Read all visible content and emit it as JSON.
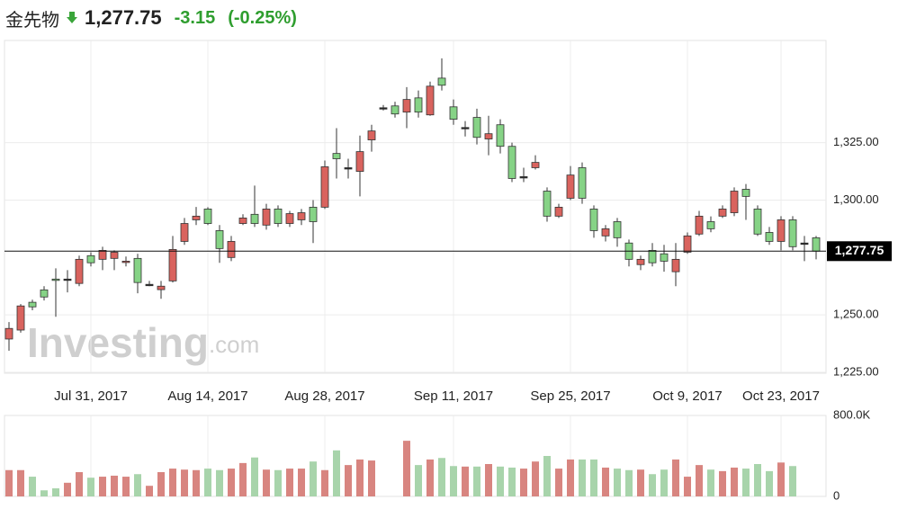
{
  "header": {
    "title": "金先物",
    "price": "1,277.75",
    "change": "-3.15",
    "change_pct": "(-0.25%)"
  },
  "chart_data": {
    "type": "candlestick",
    "categories": [
      null,
      null,
      null,
      null,
      null,
      null,
      null,
      "Jul 31, 2017",
      null,
      null,
      null,
      null,
      null,
      null,
      null,
      null,
      null,
      "Aug 14, 2017",
      null,
      null,
      null,
      null,
      null,
      null,
      null,
      null,
      null,
      "Aug 28, 2017",
      null,
      null,
      null,
      null,
      null,
      null,
      null,
      null,
      null,
      null,
      "Sep 11, 2017",
      null,
      null,
      null,
      null,
      null,
      null,
      null,
      null,
      null,
      "Sep 25, 2017",
      null,
      null,
      null,
      null,
      null,
      null,
      null,
      null,
      null,
      "Oct 9, 2017",
      null,
      null,
      null,
      null,
      null,
      null,
      null,
      "Oct 23, 2017",
      null,
      null,
      null
    ],
    "open": [
      1239.5,
      1243.4,
      1255.5,
      1260.9,
      1265.6,
      1265.6,
      1263.7,
      1275.8,
      1274.2,
      1274.6,
      1273.0,
      1274.6,
      1263.3,
      1261.0,
      1264.8,
      1282.0,
      1291.4,
      1296.1,
      1286.7,
      1275.0,
      1289.8,
      1293.8,
      1289.1,
      1296.1,
      1289.8,
      1291.4,
      1296.9,
      1296.9,
      1320.3,
      1314.1,
      1312.5,
      1326.2,
      1340.2,
      1341.0,
      1338.3,
      1344.5,
      1337.1,
      1353.1,
      1340.6,
      1331.6,
      1336.0,
      1326.6,
      1332.8,
      1323.4,
      1310.2,
      1314.1,
      1303.9,
      1293.0,
      1300.8,
      1314.1,
      1296.1,
      1284.4,
      1290.6,
      1281.3,
      1271.9,
      1278.1,
      1276.6,
      1268.8,
      1277.3,
      1285.2,
      1290.6,
      1293.0,
      1294.5,
      1304.7,
      1296.1,
      1285.9,
      1282.0,
      1291.4,
      1281.3,
      1283.6
    ],
    "high": [
      1246.9,
      1254.7,
      1256.6,
      1262.5,
      1270.3,
      1269.5,
      1275.8,
      1277.3,
      1279.7,
      1278.1,
      1275.4,
      1276.6,
      1264.8,
      1264.8,
      1284.4,
      1292.2,
      1297.0,
      1296.9,
      1289.1,
      1284.4,
      1293.8,
      1306.3,
      1298.4,
      1297.7,
      1295.3,
      1296.1,
      1300.0,
      1317.2,
      1331.3,
      1318.0,
      1328.1,
      1332.8,
      1341.4,
      1342.8,
      1349.2,
      1347.7,
      1351.6,
      1361.7,
      1343.8,
      1334.4,
      1339.8,
      1336.7,
      1335.2,
      1325.0,
      1314.1,
      1319.5,
      1305.5,
      1298.4,
      1314.8,
      1316.4,
      1297.7,
      1289.1,
      1292.2,
      1282.8,
      1275.8,
      1281.3,
      1280.5,
      1281.3,
      1285.9,
      1295.3,
      1292.9,
      1297.7,
      1305.5,
      1307.0,
      1297.7,
      1288.3,
      1293.0,
      1293.0,
      1284.4,
      1284.4
    ],
    "low": [
      1234.4,
      1242.3,
      1252.0,
      1256.3,
      1249.2,
      1259.8,
      1262.5,
      1271.1,
      1269.5,
      1269.5,
      1271.1,
      1259.4,
      1262.5,
      1257.0,
      1264.1,
      1280.5,
      1289.1,
      1289.1,
      1272.7,
      1273.4,
      1289.1,
      1288.3,
      1287.1,
      1288.3,
      1288.3,
      1289.1,
      1281.3,
      1296.1,
      1309.4,
      1309.4,
      1301.6,
      1321.1,
      1339.0,
      1335.9,
      1331.3,
      1335.9,
      1336.7,
      1347.7,
      1332.8,
      1327.7,
      1324.2,
      1319.5,
      1320.3,
      1307.8,
      1307.8,
      1313.3,
      1290.6,
      1292.2,
      1300.0,
      1298.4,
      1283.6,
      1282.0,
      1279.7,
      1271.1,
      1269.5,
      1271.1,
      1268.8,
      1262.5,
      1276.6,
      1284.4,
      1286.0,
      1292.2,
      1293.0,
      1291.4,
      1284.4,
      1280.5,
      1278.1,
      1278.1,
      1273.4,
      1274.2
    ],
    "close": [
      1244.1,
      1253.9,
      1253.5,
      1257.8,
      1265.2,
      1265.6,
      1274.2,
      1272.7,
      1278.1,
      1277.3,
      1273.4,
      1264.1,
      1263.3,
      1262.5,
      1278.5,
      1289.8,
      1293.0,
      1289.8,
      1278.9,
      1282.0,
      1292.2,
      1289.8,
      1296.1,
      1289.8,
      1294.1,
      1294.5,
      1290.6,
      1314.5,
      1318.0,
      1314.1,
      1321.1,
      1330.1,
      1340.2,
      1337.5,
      1343.8,
      1338.3,
      1349.6,
      1350.0,
      1335.2,
      1331.6,
      1327.3,
      1328.9,
      1323.4,
      1309.4,
      1310.2,
      1316.4,
      1293.0,
      1296.9,
      1310.9,
      1300.8,
      1286.7,
      1287.5,
      1283.6,
      1274.2,
      1274.2,
      1272.7,
      1273.4,
      1274.2,
      1284.4,
      1293.0,
      1287.5,
      1296.1,
      1303.9,
      1301.6,
      1285.2,
      1282.0,
      1291.4,
      1279.7,
      1281.3,
      1277.75
    ],
    "up_color": "#d9635e",
    "down_color": "#86d386",
    "doji_color": "#222222",
    "ylim": [
      1225,
      1369.5
    ],
    "yticks": [
      {
        "value": 1225,
        "label": "1,225.00"
      },
      {
        "value": 1250,
        "label": "1,250.00"
      },
      {
        "value": 1300,
        "label": "1,300.00"
      },
      {
        "value": 1325,
        "label": "1,325.00"
      }
    ],
    "last": {
      "value": 1277.75,
      "label": "1,277.75"
    },
    "grid": true,
    "volume": {
      "values": [
        260000,
        260000,
        195000,
        60000,
        80000,
        135000,
        240000,
        185000,
        195000,
        205000,
        195000,
        220000,
        105000,
        240000,
        275000,
        265000,
        260000,
        275000,
        260000,
        275000,
        330000,
        385000,
        265000,
        260000,
        275000,
        275000,
        345000,
        260000,
        455000,
        310000,
        365000,
        355000,
        0,
        0,
        550000,
        310000,
        365000,
        380000,
        300000,
        295000,
        295000,
        320000,
        295000,
        285000,
        275000,
        345000,
        400000,
        275000,
        365000,
        365000,
        365000,
        285000,
        275000,
        260000,
        265000,
        220000,
        265000,
        365000,
        195000,
        310000,
        265000,
        250000,
        285000,
        275000,
        320000,
        250000,
        335000,
        300000,
        0,
        0
      ],
      "up_color": "#d88580",
      "down_color": "#a8d4ab",
      "ylim": [
        0,
        800000
      ],
      "yticks": [
        {
          "value": 0,
          "label": "0"
        },
        {
          "value": 800000,
          "label": "800.0K"
        }
      ]
    },
    "watermark": [
      "Investing",
      ".com"
    ]
  }
}
